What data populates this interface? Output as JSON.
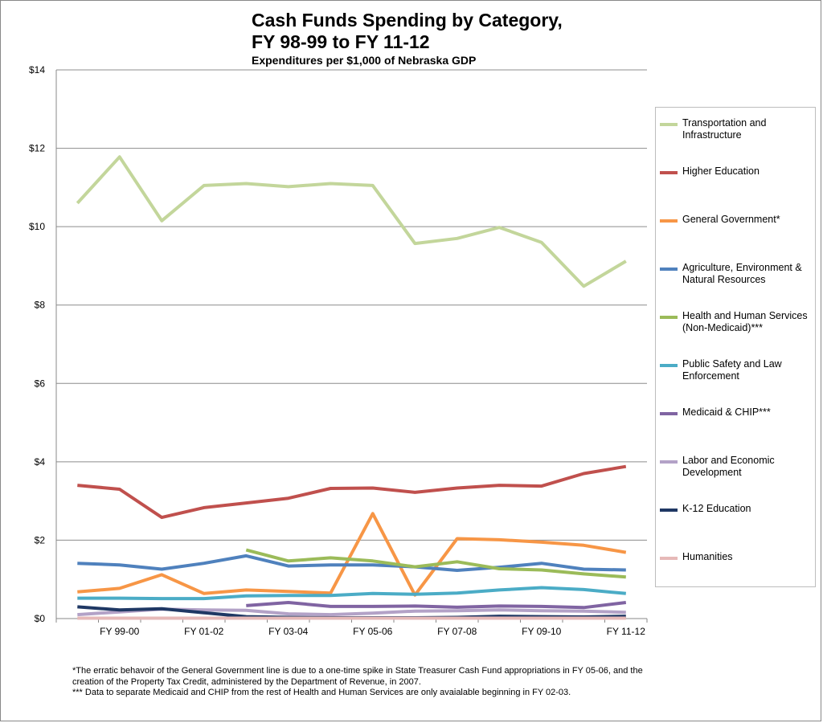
{
  "title": {
    "line1": "Cash Funds Spending by Category,",
    "line2": "FY 98-99 to FY 11-12",
    "subtitle": "Expenditures per $1,000 of Nebraska GDP"
  },
  "footnotes": {
    "note1": "*The erratic behavoir of the General Government line is due to a one-time spike in State Treasurer Cash Fund appropriations in FY 05-06, and the creation of the Property Tax Credit, administered by the Department of Revenue, in 2007.",
    "note2": "*** Data to separate Medicaid and CHIP from the rest of Health and Human Services are only avaialable beginning in FY 02-03."
  },
  "chart_data": {
    "type": "line",
    "x": [
      "FY 98-99",
      "FY 99-00",
      "FY 00-01",
      "FY 01-02",
      "FY 02-03",
      "FY 03-04",
      "FY 04-05",
      "FY 05-06",
      "FY 06-07",
      "FY 07-08",
      "FY 08-09",
      "FY 09-10",
      "FY 10-11",
      "FY 11-12"
    ],
    "xtick_labels": [
      "FY 99-00",
      "FY 01-02",
      "FY 03-04",
      "FY 05-06",
      "FY 07-08",
      "FY 09-10",
      "FY 11-12"
    ],
    "xtick_indices": [
      1,
      3,
      5,
      7,
      9,
      11,
      13
    ],
    "yticks": [
      0,
      2,
      4,
      6,
      8,
      10,
      12,
      14
    ],
    "ytick_labels": [
      "$0",
      "$2",
      "$4",
      "$6",
      "$8",
      "$10",
      "$12",
      "$14"
    ],
    "ylim": [
      0,
      14
    ],
    "grid": true,
    "legend_position": "right",
    "series": [
      {
        "name": "Transportation and Infrastructure",
        "color": "#c3d69b",
        "values": [
          10.6,
          11.78,
          10.15,
          11.05,
          11.1,
          11.02,
          11.1,
          11.05,
          9.57,
          9.7,
          9.98,
          9.6,
          8.48,
          9.12
        ]
      },
      {
        "name": "Higher Education",
        "color": "#c0504d",
        "values": [
          3.4,
          3.3,
          2.58,
          2.83,
          2.95,
          3.07,
          3.32,
          3.33,
          3.22,
          3.33,
          3.4,
          3.38,
          3.7,
          3.88
        ]
      },
      {
        "name": "General Government*",
        "color": "#f79646",
        "values": [
          0.68,
          0.77,
          1.12,
          0.64,
          0.73,
          0.69,
          0.65,
          2.68,
          0.6,
          2.04,
          2.01,
          1.95,
          1.87,
          1.69
        ]
      },
      {
        "name": "Agriculture, Environment & Natural Resources",
        "color": "#4f81bd",
        "values": [
          1.41,
          1.37,
          1.26,
          1.41,
          1.6,
          1.34,
          1.37,
          1.37,
          1.32,
          1.23,
          1.31,
          1.41,
          1.26,
          1.24
        ]
      },
      {
        "name": "Health and Human Services (Non-Medicaid)***",
        "color": "#9bbb59",
        "values": [
          null,
          null,
          null,
          null,
          1.75,
          1.47,
          1.55,
          1.47,
          1.32,
          1.45,
          1.27,
          1.24,
          1.14,
          1.06
        ]
      },
      {
        "name": "Public Safety and Law Enforcement",
        "color": "#4bacc6",
        "values": [
          0.52,
          0.52,
          0.51,
          0.51,
          0.58,
          0.59,
          0.59,
          0.64,
          0.62,
          0.65,
          0.73,
          0.79,
          0.74,
          0.64
        ]
      },
      {
        "name": "Medicaid & CHIP***",
        "color": "#8064a2",
        "values": [
          null,
          null,
          null,
          null,
          0.33,
          0.41,
          0.31,
          0.31,
          0.32,
          0.29,
          0.32,
          0.31,
          0.28,
          0.41
        ]
      },
      {
        "name": "Labor and Economic Development",
        "color": "#b3a2c7",
        "values": [
          0.1,
          0.17,
          0.24,
          0.22,
          0.21,
          0.12,
          0.1,
          0.14,
          0.19,
          0.2,
          0.22,
          0.2,
          0.19,
          0.16
        ]
      },
      {
        "name": "K-12 Education",
        "color": "#1f3864",
        "values": [
          0.3,
          0.22,
          0.25,
          0.15,
          0.05,
          0.03,
          0.02,
          0.02,
          0.02,
          0.03,
          0.06,
          0.05,
          0.04,
          0.06
        ]
      },
      {
        "name": "Humanities",
        "color": "#e6b9b8",
        "values": [
          0.01,
          0.01,
          0.01,
          0.01,
          0.01,
          0.01,
          0.01,
          0.01,
          0.01,
          0.01,
          0.01,
          0.01,
          0.01,
          0.01
        ]
      }
    ]
  }
}
